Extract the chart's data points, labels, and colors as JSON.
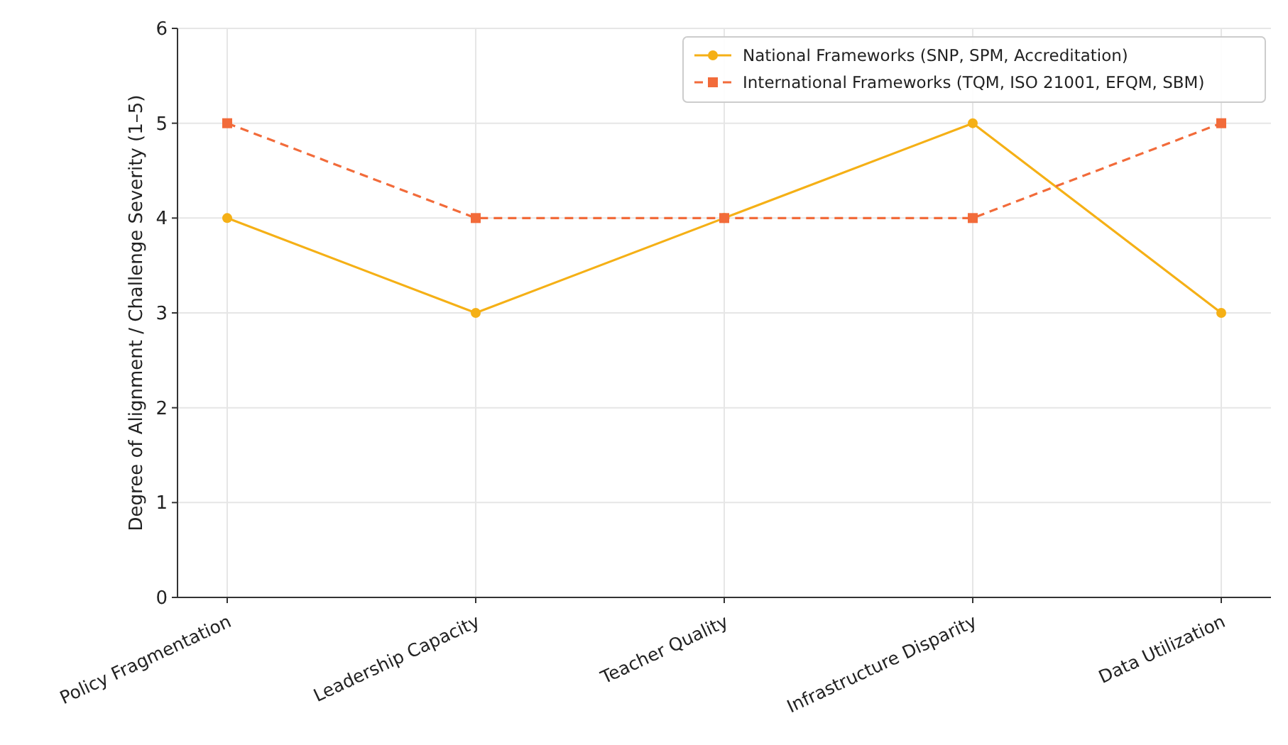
{
  "chart_data": {
    "type": "line",
    "ylabel": "Degree of Alignment / Challenge Severity (1–5)",
    "categories": [
      "Policy Fragmentation",
      "Leadership Capacity",
      "Teacher Quality",
      "Infrastructure Disparity",
      "Data Utilization"
    ],
    "series": [
      {
        "name": "National Frameworks (SNP, SPM, Accreditation)",
        "color": "#f5b016",
        "values": [
          4,
          3,
          4,
          5,
          3
        ],
        "marker": "circle",
        "line_style": "solid"
      },
      {
        "name": "International Frameworks (TQM, ISO 21001, EFQM, SBM)",
        "color": "#f26b3a",
        "values": [
          5,
          4,
          4,
          4,
          5
        ],
        "marker": "square",
        "line_style": "dashed"
      }
    ],
    "ylim": [
      0,
      6
    ],
    "yticks": [
      0,
      1,
      2,
      3,
      4,
      5,
      6
    ],
    "grid": true,
    "legend": "top right"
  }
}
